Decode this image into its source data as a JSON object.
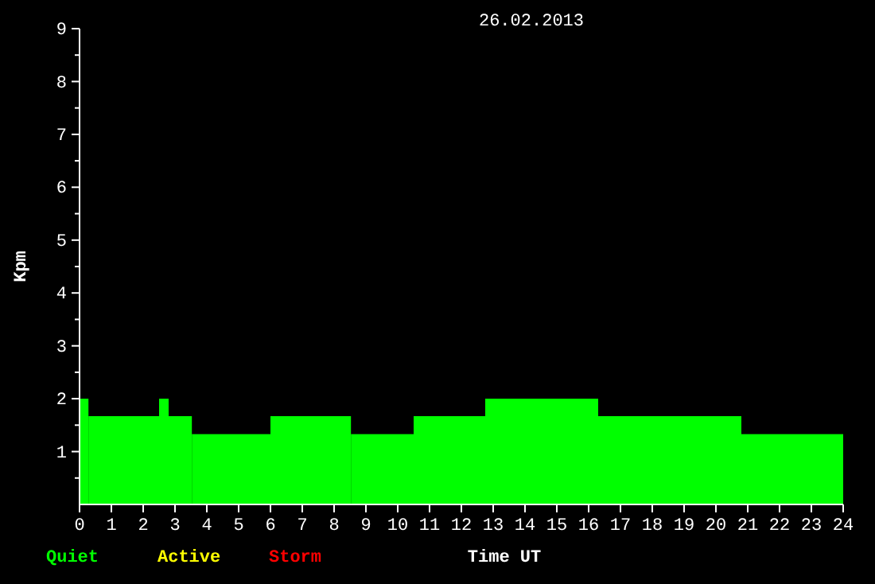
{
  "chart_data": {
    "type": "histogram",
    "title": "26.02.2013",
    "xlabel": "Time UT",
    "ylabel": "Kpm",
    "bins": [
      0,
      0.28,
      2.5,
      2.8,
      3.53,
      6,
      8.53,
      10.5,
      12.75,
      16.3,
      20.8,
      24
    ],
    "values": [
      2,
      1.67,
      2,
      1.67,
      1.33,
      1.67,
      1.33,
      1.67,
      2,
      1.67,
      1.33
    ],
    "color": "#00ff00",
    "annotations": [
      "Quiet",
      "Active",
      "Storm"
    ],
    "xlim": [
      0,
      24
    ],
    "xticks": [
      0,
      1,
      2,
      3,
      4,
      5,
      6,
      7,
      8,
      9,
      10,
      11,
      12,
      13,
      14,
      15,
      16,
      17,
      18,
      19,
      20,
      21,
      22,
      23,
      24
    ],
    "ylim": [
      0,
      9
    ],
    "yticks": [
      {
        "value": 0.5,
        "label": null
      },
      1,
      {
        "value": 1.5,
        "label": null
      },
      2,
      {
        "value": 2.5,
        "label": null
      },
      3,
      {
        "value": 3.5,
        "label": null
      },
      4,
      {
        "value": 4.5,
        "label": null
      },
      5,
      {
        "value": 5.5,
        "label": null
      },
      6,
      {
        "value": 6.5,
        "label": null
      },
      7,
      {
        "value": 7.5,
        "label": null
      },
      8,
      {
        "value": 8.5,
        "label": null
      },
      9
    ]
  }
}
